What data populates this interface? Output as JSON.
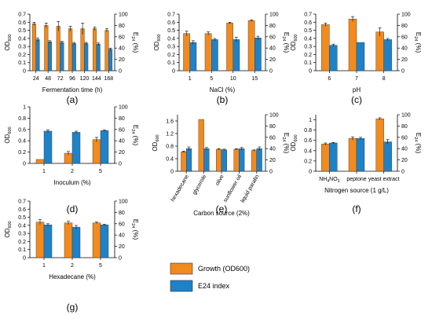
{
  "colors": {
    "growth": "#f28a1e",
    "e24": "#1e82c8"
  },
  "legend": {
    "growth_label": "Growth (OD600)",
    "e24_label": "E24 index"
  },
  "chart_data": [
    {
      "panel_label": "(a)",
      "type": "bar",
      "xlabel": "Fermentation time (h)",
      "ylabel_left": "OD600",
      "ylabel_right": "E24 (%)",
      "ylim_left": [
        0,
        0.7
      ],
      "yticks_left": [
        0,
        0.1,
        0.2,
        0.3,
        0.4,
        0.5,
        0.6,
        0.7
      ],
      "ylim_right": [
        0,
        100
      ],
      "yticks_right": [
        0,
        20,
        40,
        60,
        80,
        100
      ],
      "categories": [
        "24",
        "48",
        "72",
        "96",
        "120",
        "144",
        "168"
      ],
      "series": [
        {
          "name": "Growth (OD600)",
          "axis": "left",
          "values": [
            0.58,
            0.56,
            0.55,
            0.52,
            0.52,
            0.52,
            0.5
          ],
          "errors": [
            0.02,
            0.03,
            0.06,
            0.03,
            0.07,
            0.02,
            0.02
          ]
        },
        {
          "name": "E24 index",
          "axis": "right",
          "values": [
            55,
            51,
            50,
            48,
            48,
            47,
            38
          ],
          "errors": [
            3,
            2,
            2,
            2,
            2,
            2,
            2
          ]
        }
      ]
    },
    {
      "panel_label": "(b)",
      "type": "bar",
      "xlabel": "NaCl (%)",
      "ylabel_left": "OD600",
      "ylabel_right": "E24 (%)",
      "ylim_left": [
        0,
        0.7
      ],
      "yticks_left": [
        0,
        0.1,
        0.2,
        0.3,
        0.4,
        0.5,
        0.6,
        0.7
      ],
      "ylim_right": [
        0,
        100
      ],
      "yticks_right": [
        0,
        20,
        40,
        60,
        80,
        100
      ],
      "categories": [
        "1",
        "5",
        "10",
        "15"
      ],
      "series": [
        {
          "name": "Growth (OD600)",
          "axis": "left",
          "values": [
            0.46,
            0.46,
            0.59,
            0.62
          ],
          "errors": [
            0.03,
            0.02,
            0.01,
            0.01
          ]
        },
        {
          "name": "E24 index",
          "axis": "right",
          "values": [
            50,
            55,
            55,
            58
          ],
          "errors": [
            3,
            2,
            4,
            3
          ]
        }
      ]
    },
    {
      "panel_label": "(c)",
      "type": "bar",
      "xlabel": "pH",
      "ylabel_left": "OD600",
      "ylabel_right": "E24 (%)",
      "ylim_left": [
        0,
        0.7
      ],
      "yticks_left": [
        0,
        0.1,
        0.2,
        0.3,
        0.4,
        0.5,
        0.6,
        0.7
      ],
      "ylim_right": [
        0,
        100
      ],
      "yticks_right": [
        0,
        20,
        40,
        60,
        80,
        100
      ],
      "categories": [
        "6",
        "7",
        "8"
      ],
      "series": [
        {
          "name": "Growth (OD600)",
          "axis": "left",
          "values": [
            0.57,
            0.64,
            0.48
          ],
          "errors": [
            0.02,
            0.03,
            0.05
          ]
        },
        {
          "name": "E24 index",
          "axis": "right",
          "values": [
            45,
            50,
            55
          ],
          "errors": [
            2,
            0,
            2
          ]
        }
      ]
    },
    {
      "panel_label": "(d)",
      "type": "bar",
      "xlabel": "Inoculum (%)",
      "ylabel_left": "OD600",
      "ylabel_right": "E24 (%)",
      "ylim_left": [
        0,
        1.0
      ],
      "yticks_left": [
        0,
        0.2,
        0.4,
        0.6,
        0.8,
        1.0
      ],
      "ylim_right": [
        0,
        100
      ],
      "yticks_right": [
        0,
        20,
        40,
        60,
        80,
        100
      ],
      "categories": [
        "1",
        "2",
        "5"
      ],
      "series": [
        {
          "name": "Growth (OD600)",
          "axis": "left",
          "values": [
            0.07,
            0.18,
            0.42
          ],
          "errors": [
            0,
            0.03,
            0.04
          ]
        },
        {
          "name": "E24 index",
          "axis": "right",
          "values": [
            57,
            55,
            58
          ],
          "errors": [
            2,
            2,
            1
          ]
        }
      ]
    },
    {
      "panel_label": "(e)",
      "type": "bar",
      "xlabel": "Carbon source (2%)",
      "ylabel_left": "OD600",
      "ylabel_right": "E24 (%)",
      "ylim_left": [
        0,
        1.8
      ],
      "yticks_left": [
        0,
        0.4,
        0.8,
        1.2,
        1.6
      ],
      "ylim_right": [
        0,
        100
      ],
      "yticks_right": [
        0,
        20,
        40,
        60,
        80,
        100
      ],
      "categories": [
        "hexadecane",
        "glycerole",
        "olive",
        "sunflower oil",
        "liquid parafin"
      ],
      "series": [
        {
          "name": "Growth (OD600)",
          "axis": "left",
          "values": [
            0.62,
            1.65,
            0.7,
            0.7,
            0.66
          ],
          "errors": [
            0.02,
            0,
            0.02,
            0.02,
            0.02
          ]
        },
        {
          "name": "E24 index",
          "axis": "right",
          "values": [
            40,
            40,
            38,
            40,
            40
          ],
          "errors": [
            3,
            2,
            1,
            2,
            3
          ]
        }
      ]
    },
    {
      "panel_label": "(f)",
      "type": "bar",
      "xlabel": "Nitrogen source (1 g/L)",
      "ylabel_left": "OD600",
      "ylabel_right": "E24 (%)",
      "ylim_left": [
        0,
        1.1
      ],
      "yticks_left": [
        0,
        0.2,
        0.4,
        0.6,
        0.8,
        1
      ],
      "ylim_right": [
        0,
        100
      ],
      "yticks_right": [
        0,
        20,
        40,
        60,
        80,
        100
      ],
      "categories": [
        "NH4NO3",
        "peptone",
        "yeast extract"
      ],
      "series": [
        {
          "name": "Growth (OD600)",
          "axis": "left",
          "values": [
            0.53,
            0.64,
            1.02
          ],
          "errors": [
            0.02,
            0.03,
            0.02
          ]
        },
        {
          "name": "E24 index",
          "axis": "right",
          "values": [
            50,
            58,
            52
          ],
          "errors": [
            1,
            2,
            4
          ]
        }
      ]
    },
    {
      "panel_label": "(g)",
      "type": "bar",
      "xlabel": "Hexadecane (%)",
      "ylabel_left": "OD600",
      "ylabel_right": "E24 (%)",
      "ylim_left": [
        0,
        0.7
      ],
      "yticks_left": [
        0,
        0.1,
        0.2,
        0.3,
        0.4,
        0.5,
        0.6,
        0.7
      ],
      "ylim_right": [
        0,
        100
      ],
      "yticks_right": [
        0,
        20,
        40,
        60,
        80,
        100
      ],
      "categories": [
        "1",
        "2",
        "5"
      ],
      "series": [
        {
          "name": "Growth (OD600)",
          "axis": "left",
          "values": [
            0.44,
            0.43,
            0.43
          ],
          "errors": [
            0.03,
            0.02,
            0.01
          ]
        },
        {
          "name": "E24 index",
          "axis": "right",
          "values": [
            58,
            54,
            58
          ],
          "errors": [
            2,
            3,
            1
          ]
        }
      ]
    }
  ]
}
